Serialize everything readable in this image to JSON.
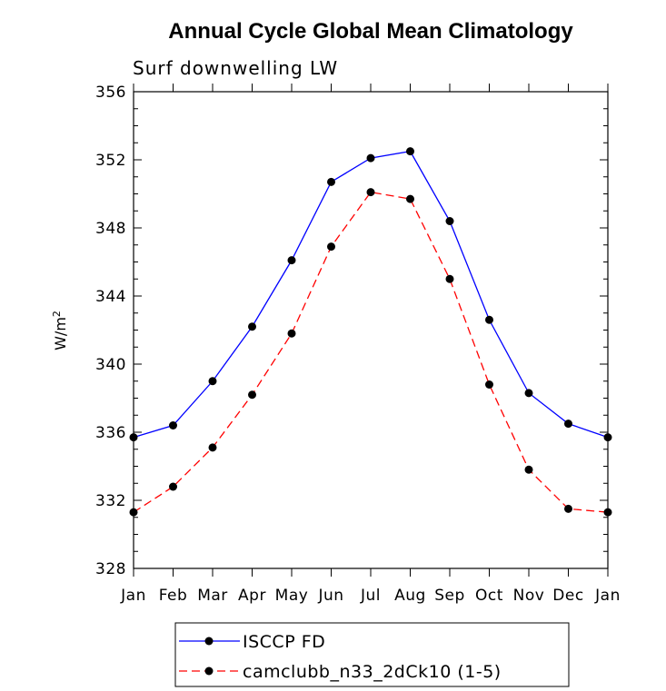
{
  "chart_data": {
    "type": "line",
    "title": "Annual Cycle Global Mean Climatology",
    "subtitle": "Surf downwelling LW",
    "ylabel": "W/m",
    "ylabel_sup": "2",
    "xlabel": "",
    "categories": [
      "Jan",
      "Feb",
      "Mar",
      "Apr",
      "May",
      "Jun",
      "Jul",
      "Aug",
      "Sep",
      "Oct",
      "Nov",
      "Dec",
      "Jan"
    ],
    "ylim": [
      328,
      356
    ],
    "yticks": [
      328,
      332,
      336,
      340,
      344,
      348,
      352,
      356
    ],
    "ytick_labels": [
      "328",
      "332",
      "336",
      "340",
      "344",
      "348",
      "352",
      "356"
    ],
    "grid": false,
    "legend_position": "bottom",
    "series": [
      {
        "name": "ISCCP FD",
        "color": "#0000ff",
        "dash": "solid",
        "marker": "filled-circle",
        "values": [
          335.7,
          336.4,
          339.0,
          342.2,
          346.1,
          350.7,
          352.1,
          352.5,
          348.4,
          342.6,
          338.3,
          336.5,
          335.7
        ]
      },
      {
        "name": "camclubb_n33_2dCk10 (1-5)",
        "color": "#ff0000",
        "dash": "dashed",
        "marker": "filled-circle",
        "values": [
          331.3,
          332.8,
          335.1,
          338.2,
          341.8,
          346.9,
          350.1,
          349.7,
          345.0,
          338.8,
          333.8,
          331.5,
          331.3
        ]
      }
    ]
  }
}
